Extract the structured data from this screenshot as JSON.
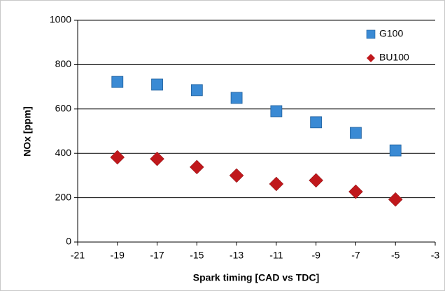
{
  "chart_data": {
    "type": "scatter",
    "x_label": "Spark timing [CAD vs TDC]",
    "y_label": "NOx [ppm]",
    "xlim": [
      -21,
      -3
    ],
    "xticks": [
      -21,
      -19,
      -17,
      -15,
      -13,
      -11,
      -9,
      -7,
      -5,
      -3
    ],
    "ylim": [
      0,
      1000
    ],
    "yticks": [
      0,
      200,
      400,
      600,
      800,
      1000
    ],
    "grid": true,
    "legend": "upper right",
    "series": [
      {
        "name": "G100",
        "color": "#3a8ad4",
        "marker": "square",
        "x": [
          -19,
          -17,
          -15,
          -13,
          -11,
          -9,
          -7,
          -5
        ],
        "values": [
          722,
          710,
          685,
          650,
          590,
          540,
          492,
          413
        ]
      },
      {
        "name": "BU100",
        "color": "#c0181c",
        "marker": "diamond",
        "x": [
          -19,
          -17,
          -15,
          -13,
          -11,
          -9,
          -7,
          -5
        ],
        "values": [
          382,
          375,
          338,
          300,
          262,
          278,
          227,
          192
        ]
      }
    ]
  }
}
